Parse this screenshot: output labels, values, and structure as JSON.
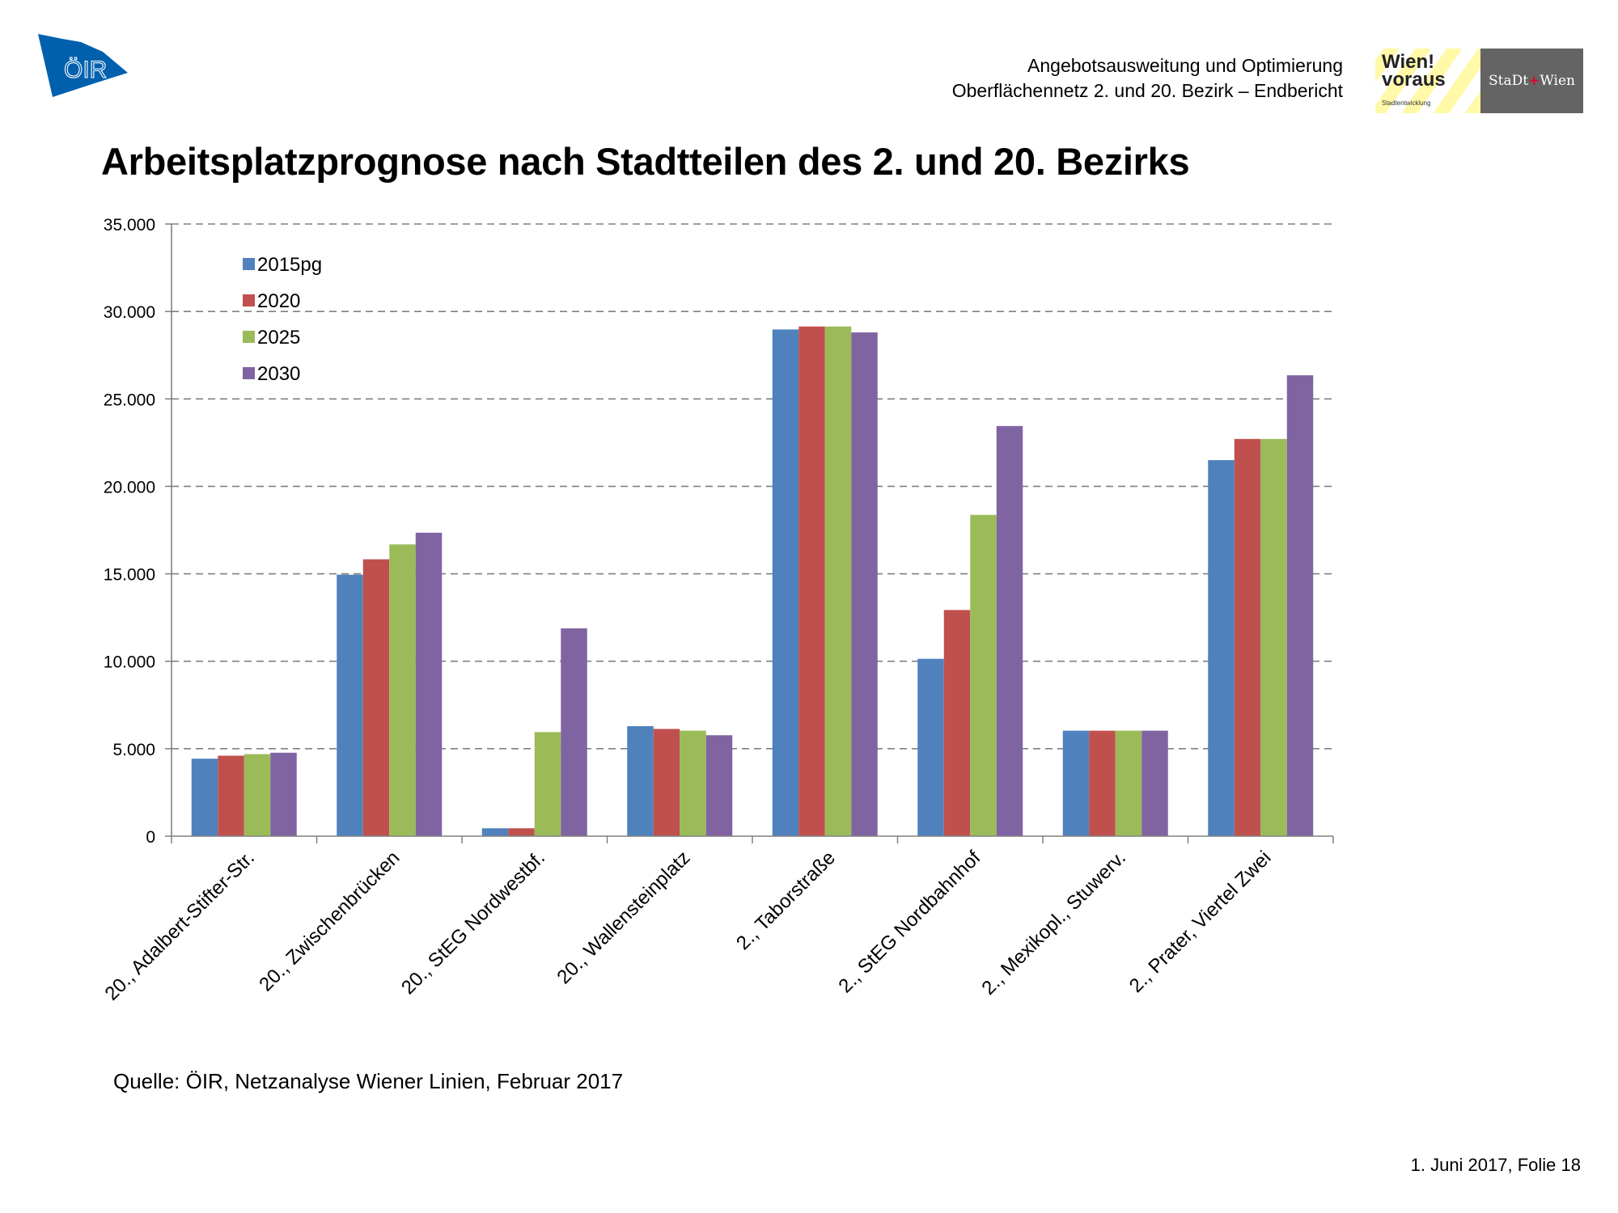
{
  "header": {
    "logo_left": "ÖIR",
    "subtitle_line1": "Angebotsausweitung und Optimierung",
    "subtitle_line2": "Oberflächennetz 2. und 20. Bezirk – Endbericht",
    "logo_right_1_line1": "Wien!",
    "logo_right_1_line2": "voraus",
    "logo_right_1_small": "Stadtentwicklung",
    "logo_right_2_left": "StaDt",
    "logo_right_2_cross": "+",
    "logo_right_2_right": "Wien",
    "colors": {
      "oir_blue": "#0060ae",
      "wien_yellow": "#fff9a8",
      "stadt_grey": "#646464"
    }
  },
  "page_title": "Arbeitsplatzprognose nach Stadtteilen des 2. und 20. Bezirks",
  "source_note": "Quelle: ÖIR, Netzanalyse Wiener Linien, Februar 2017",
  "footer": "1. Juni 2017, Folie 18",
  "chart_data": {
    "type": "bar",
    "title": "Arbeitsplatzprognose nach Stadtteilen des 2. und 20. Bezirks",
    "xlabel": "",
    "ylabel": "",
    "ylim": [
      0,
      35000
    ],
    "yticks": [
      0,
      5000,
      10000,
      15000,
      20000,
      25000,
      30000,
      35000
    ],
    "ytick_labels": [
      "0",
      "5.000",
      "10.000",
      "15.000",
      "20.000",
      "25.000",
      "30.000",
      "35.000"
    ],
    "grid": "horizontal dashed",
    "legend_position": "top-left (inside plot)",
    "categories": [
      "20., Adalbert-Stifter-Str.",
      "20., Zwischenbrücken",
      "20., StEG Nordwestbf.",
      "20., Wallensteinplatz",
      "2., Taborstraße",
      "2., StEG Nordbahnhof",
      "2., Mexikopl., Stuwerv.",
      "2., Prater, Viertel Zwei"
    ],
    "series": [
      {
        "name": "2015pg",
        "color": "#4f81bd",
        "values": [
          4430,
          14950,
          450,
          6290,
          28970,
          10140,
          6030,
          21500
        ]
      },
      {
        "name": "2020",
        "color": "#c0504d",
        "values": [
          4600,
          15830,
          450,
          6130,
          29140,
          12930,
          6030,
          22710
        ]
      },
      {
        "name": "2025",
        "color": "#9bbb59",
        "values": [
          4690,
          16680,
          5950,
          6030,
          29140,
          18370,
          6030,
          22710
        ]
      },
      {
        "name": "2030",
        "color": "#8064a2",
        "values": [
          4770,
          17350,
          11880,
          5770,
          28800,
          23450,
          6030,
          26350
        ]
      }
    ]
  }
}
